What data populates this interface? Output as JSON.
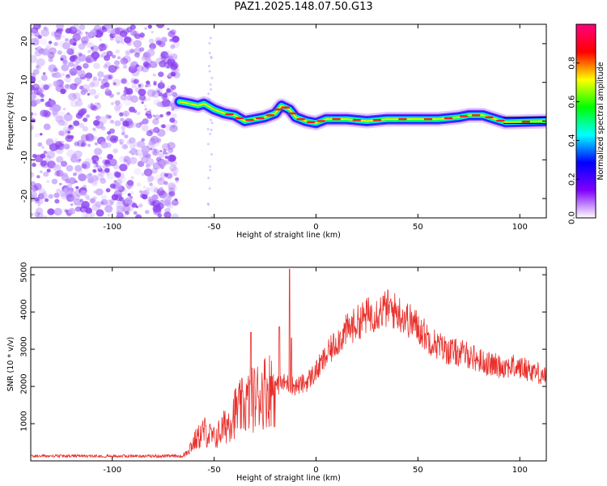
{
  "page_title": "PAZ1.2025.148.07.50.G13",
  "colors": {
    "snr_line": "#e8302c",
    "spectrogram_noise": "#8a3ff0",
    "axis": "#000000"
  },
  "chart_data": [
    {
      "type": "heatmap",
      "name": "spectrogram",
      "xlabel": "Height of straight line (km)",
      "ylabel": "Frequency (Hz)",
      "xlim": [
        -140,
        113
      ],
      "ylim": [
        -25,
        25
      ],
      "xticks": [
        -100,
        -50,
        0,
        50,
        100
      ],
      "yticks": [
        -20,
        -10,
        0,
        10,
        20
      ],
      "colorbar": {
        "label": "Normalized spectral amplitude",
        "range": [
          0.0,
          1.0
        ],
        "ticks": [
          0.0,
          0.2,
          0.4,
          0.6,
          0.8
        ],
        "colormap": [
          "#ffffff",
          "#8000ff",
          "#0000ff",
          "#00ffff",
          "#00ff00",
          "#ffff00",
          "#ff0000",
          "#ff0080"
        ]
      },
      "noise_region_x": [
        -140,
        -68
      ],
      "signal_track": [
        {
          "x": -67,
          "f": 5.0
        },
        {
          "x": -62,
          "f": 4.5
        },
        {
          "x": -58,
          "f": 4.0
        },
        {
          "x": -55,
          "f": 4.5
        },
        {
          "x": -50,
          "f": 3.0
        },
        {
          "x": -45,
          "f": 2.0
        },
        {
          "x": -40,
          "f": 1.5
        },
        {
          "x": -35,
          "f": 0.0
        },
        {
          "x": -30,
          "f": 0.5
        },
        {
          "x": -25,
          "f": 1.0
        },
        {
          "x": -20,
          "f": 2.0
        },
        {
          "x": -17,
          "f": 4.0
        },
        {
          "x": -13,
          "f": 3.0
        },
        {
          "x": -10,
          "f": 1.0
        },
        {
          "x": -5,
          "f": 0.0
        },
        {
          "x": 0,
          "f": -0.5
        },
        {
          "x": 5,
          "f": 0.5
        },
        {
          "x": 15,
          "f": 0.5
        },
        {
          "x": 25,
          "f": 0.0
        },
        {
          "x": 35,
          "f": 0.5
        },
        {
          "x": 50,
          "f": 0.5
        },
        {
          "x": 60,
          "f": 0.5
        },
        {
          "x": 70,
          "f": 1.0
        },
        {
          "x": 75,
          "f": 1.5
        },
        {
          "x": 82,
          "f": 1.5
        },
        {
          "x": 88,
          "f": 0.5
        },
        {
          "x": 93,
          "f": -0.3
        },
        {
          "x": 113,
          "f": 0.0
        }
      ]
    },
    {
      "type": "line",
      "name": "snr",
      "xlabel": "Height of straight line (km)",
      "ylabel": "SNR (10 * v/v)",
      "xlim": [
        -140,
        113
      ],
      "ylim": [
        0,
        5200
      ],
      "xticks": [
        -100,
        -50,
        0,
        50,
        100
      ],
      "yticks": [
        1000,
        2000,
        3000,
        4000,
        5000
      ],
      "envelope": [
        {
          "x": -140,
          "y": 120
        },
        {
          "x": -110,
          "y": 120
        },
        {
          "x": -80,
          "y": 130
        },
        {
          "x": -65,
          "y": 150
        },
        {
          "x": -60,
          "y": 500
        },
        {
          "x": -55,
          "y": 800
        },
        {
          "x": -50,
          "y": 600
        },
        {
          "x": -45,
          "y": 900
        },
        {
          "x": -40,
          "y": 1300
        },
        {
          "x": -35,
          "y": 1500
        },
        {
          "x": -30,
          "y": 1700
        },
        {
          "x": -25,
          "y": 1900
        },
        {
          "x": -20,
          "y": 2000
        },
        {
          "x": -15,
          "y": 2100
        },
        {
          "x": -10,
          "y": 2000
        },
        {
          "x": -5,
          "y": 2100
        },
        {
          "x": 0,
          "y": 2400
        },
        {
          "x": 5,
          "y": 2800
        },
        {
          "x": 10,
          "y": 3200
        },
        {
          "x": 15,
          "y": 3500
        },
        {
          "x": 20,
          "y": 3700
        },
        {
          "x": 25,
          "y": 3900
        },
        {
          "x": 30,
          "y": 4000
        },
        {
          "x": 35,
          "y": 4100
        },
        {
          "x": 40,
          "y": 4000
        },
        {
          "x": 45,
          "y": 3800
        },
        {
          "x": 50,
          "y": 3600
        },
        {
          "x": 55,
          "y": 3300
        },
        {
          "x": 60,
          "y": 3100
        },
        {
          "x": 65,
          "y": 2950
        },
        {
          "x": 70,
          "y": 2900
        },
        {
          "x": 75,
          "y": 2850
        },
        {
          "x": 80,
          "y": 2700
        },
        {
          "x": 85,
          "y": 2600
        },
        {
          "x": 90,
          "y": 2550
        },
        {
          "x": 95,
          "y": 2550
        },
        {
          "x": 100,
          "y": 2500
        },
        {
          "x": 105,
          "y": 2450
        },
        {
          "x": 110,
          "y": 2350
        },
        {
          "x": 113,
          "y": 2300
        }
      ],
      "spikes": [
        {
          "x": -32,
          "y": 3450
        },
        {
          "x": -18,
          "y": 3600
        },
        {
          "x": -13,
          "y": 5150
        },
        {
          "x": -12,
          "y": 3300
        }
      ]
    }
  ]
}
